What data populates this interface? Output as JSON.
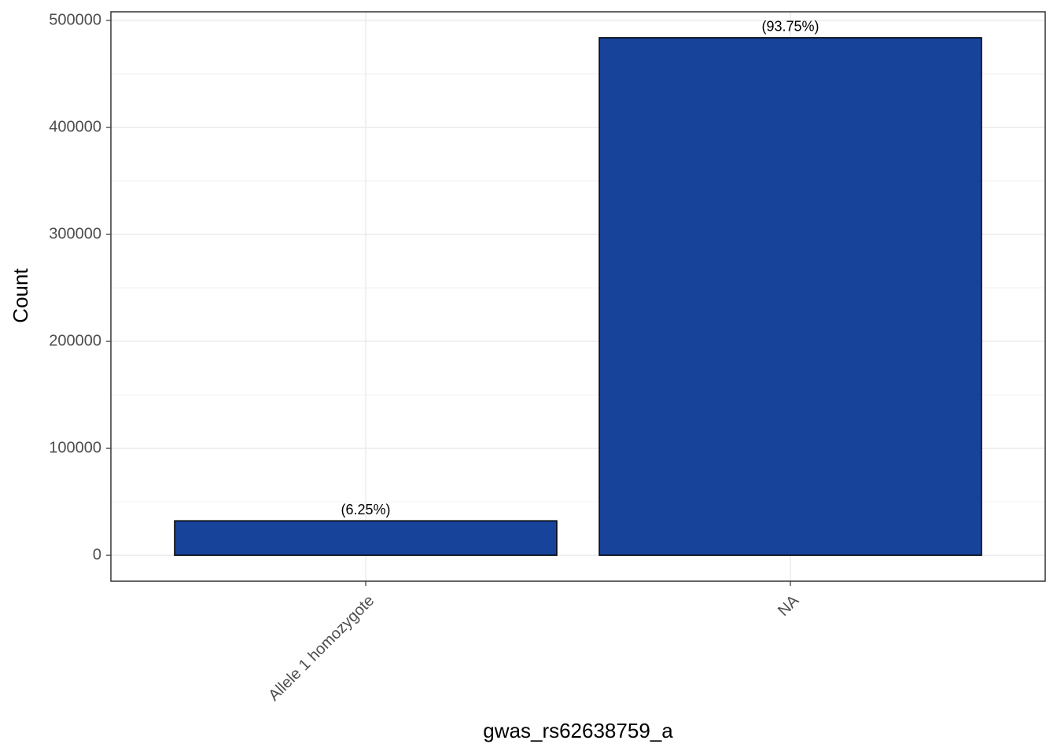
{
  "chart_data": {
    "type": "bar",
    "x_label": "gwas_rs62638759_a",
    "y_label": "Count",
    "categories": [
      "Allele 1 homozygote",
      "NA"
    ],
    "values": [
      32259,
      483893
    ],
    "bar_labels": [
      "(6.25%)",
      "(93.75%)"
    ],
    "color": "#18439a",
    "ylim": [
      -24195,
      508088
    ],
    "yticks": [
      0,
      100000,
      200000,
      300000,
      400000,
      500000
    ],
    "yminor": [
      50000,
      150000,
      250000,
      350000,
      450000
    ],
    "grid": true
  }
}
